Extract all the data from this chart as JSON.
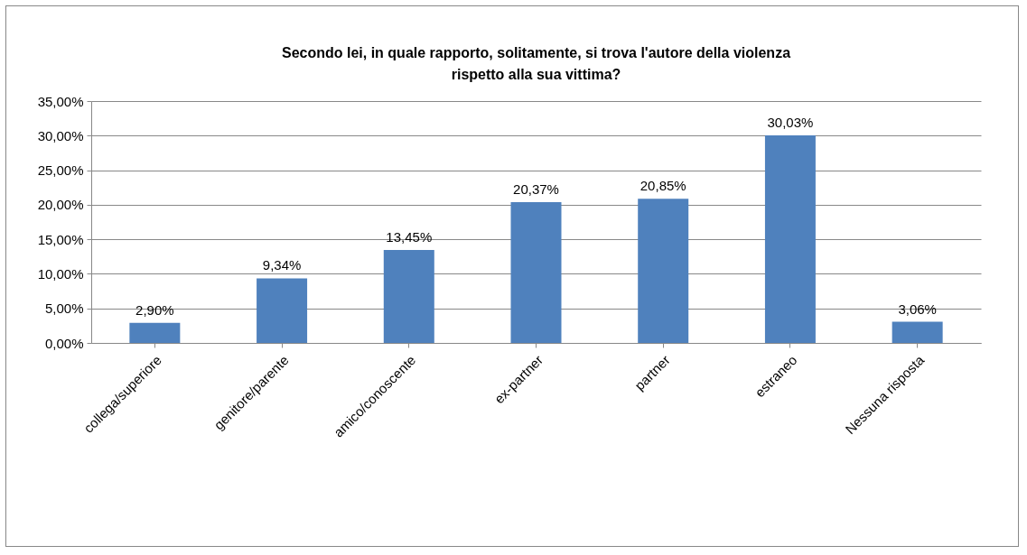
{
  "chart_data": {
    "type": "bar",
    "title": "Secondo lei, in quale rapporto, solitamente, si trova l'autore della violenza rispetto alla sua vittima?",
    "categories": [
      "collega/superiore",
      "genitore/parente",
      "amico/conoscente",
      "ex-partner",
      "partner",
      "estraneo",
      "Nessuna risposta"
    ],
    "values": [
      2.9,
      9.34,
      13.45,
      20.37,
      20.85,
      30.03,
      3.06
    ],
    "value_labels": [
      "2,90%",
      "9,34%",
      "13,45%",
      "20,37%",
      "20,85%",
      "30,03%",
      "3,06%"
    ],
    "color": "#4f81bd",
    "ylim": [
      0,
      35
    ],
    "yticks": [
      {
        "value": 0,
        "label": "0,00%"
      },
      {
        "value": 5,
        "label": "5,00%"
      },
      {
        "value": 10,
        "label": "10,00%"
      },
      {
        "value": 15,
        "label": "15,00%"
      },
      {
        "value": 20,
        "label": "20,00%"
      },
      {
        "value": 25,
        "label": "25,00%"
      },
      {
        "value": 30,
        "label": "30,00%"
      },
      {
        "value": 35,
        "label": "35,00%"
      }
    ],
    "grid": "y"
  }
}
